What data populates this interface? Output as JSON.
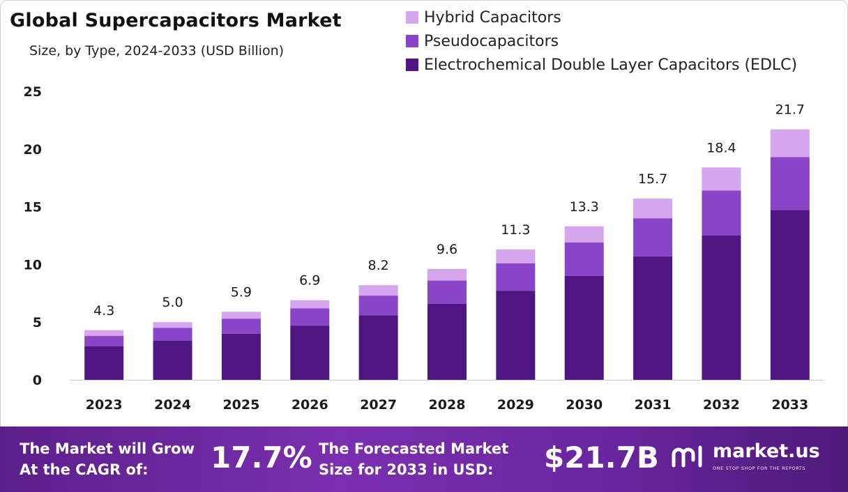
{
  "header": {
    "title": "Global Supercapacitors  Market",
    "subtitle": "Size, by Type, 2024-2033 (USD Billion)"
  },
  "legend": [
    {
      "label": "Hybrid Capacitors",
      "color": "#d5a6ee"
    },
    {
      "label": "Pseudocapacitors",
      "color": "#8a44c8"
    },
    {
      "label": "Electrochemical Double Layer Capacitors (EDLC)",
      "color": "#4f1580"
    }
  ],
  "chart_data": {
    "type": "bar",
    "stacked": true,
    "categories": [
      "2023",
      "2024",
      "2025",
      "2026",
      "2027",
      "2028",
      "2029",
      "2030",
      "2031",
      "2032",
      "2033"
    ],
    "series": [
      {
        "name": "Electrochemical Double Layer Capacitors (EDLC)",
        "color": "#4f1580",
        "values": [
          2.9,
          3.4,
          4.0,
          4.7,
          5.6,
          6.6,
          7.7,
          9.0,
          10.7,
          12.5,
          14.7
        ]
      },
      {
        "name": "Pseudocapacitors",
        "color": "#8a44c8",
        "values": [
          0.9,
          1.1,
          1.3,
          1.5,
          1.7,
          2.0,
          2.4,
          2.9,
          3.3,
          3.9,
          4.6
        ]
      },
      {
        "name": "Hybrid Capacitors",
        "color": "#d5a6ee",
        "values": [
          0.5,
          0.5,
          0.6,
          0.7,
          0.9,
          1.0,
          1.2,
          1.4,
          1.7,
          2.0,
          2.4
        ]
      }
    ],
    "totals": [
      "4.3",
      "5.0",
      "5.9",
      "6.9",
      "8.2",
      "9.6",
      "11.3",
      "13.3",
      "15.7",
      "18.4",
      "21.7"
    ],
    "ylim": [
      0,
      25
    ],
    "yticks": [
      "0",
      "5",
      "10",
      "15",
      "20",
      "25"
    ],
    "grid": false,
    "legend_position": "top-right"
  },
  "banner": {
    "cagr_label_line1": "The Market will Grow",
    "cagr_label_line2": "At the CAGR of:",
    "cagr_value": "17.7%",
    "forecast_label_line1": "The Forecasted Market",
    "forecast_label_line2": "Size for 2033 in USD:",
    "forecast_value": "$21.7B",
    "brand": "market.us",
    "brand_tagline": "ONE STOP SHOP FOR THE REPORTS"
  }
}
